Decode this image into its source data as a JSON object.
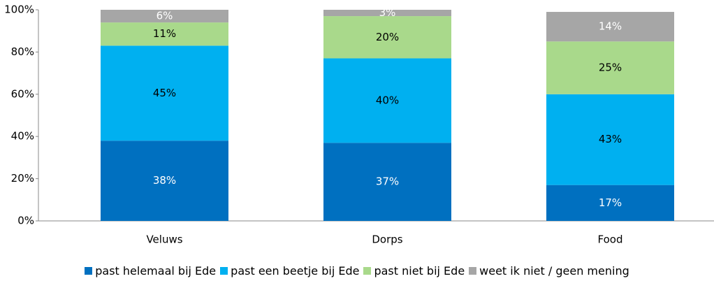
{
  "chart_data": {
    "type": "stacked_bar",
    "categories": [
      "Veluws",
      "Dorps",
      "Food"
    ],
    "series": [
      {
        "name": "past helemaal bij Ede",
        "color": "#0070c0",
        "label_color": "#ffffff",
        "values": [
          38,
          37,
          17
        ],
        "value_labels": [
          "38%",
          "37%",
          "17%"
        ]
      },
      {
        "name": "past een beetje bij Ede",
        "color": "#00b0f0",
        "label_color": "#000000",
        "values": [
          45,
          40,
          43
        ],
        "value_labels": [
          "45%",
          "40%",
          "43%"
        ]
      },
      {
        "name": "past niet bij Ede",
        "color": "#a9d98b",
        "label_color": "#000000",
        "values": [
          11,
          20,
          25
        ],
        "value_labels": [
          "11%",
          "20%",
          "25%"
        ]
      },
      {
        "name": "weet ik niet / geen mening",
        "color": "#a6a6a6",
        "label_color": "#ffffff",
        "values": [
          6,
          3,
          14
        ],
        "value_labels": [
          "6%",
          "3%",
          "14%"
        ]
      }
    ],
    "ylim": [
      0,
      100
    ],
    "yticks": [
      {
        "value": 0,
        "label": "0%"
      },
      {
        "value": 20,
        "label": "20%"
      },
      {
        "value": 40,
        "label": "40%"
      },
      {
        "value": 60,
        "label": "60%"
      },
      {
        "value": 80,
        "label": "80%"
      },
      {
        "value": 100,
        "label": "100%"
      }
    ],
    "grid": false,
    "legend": "bottom"
  }
}
